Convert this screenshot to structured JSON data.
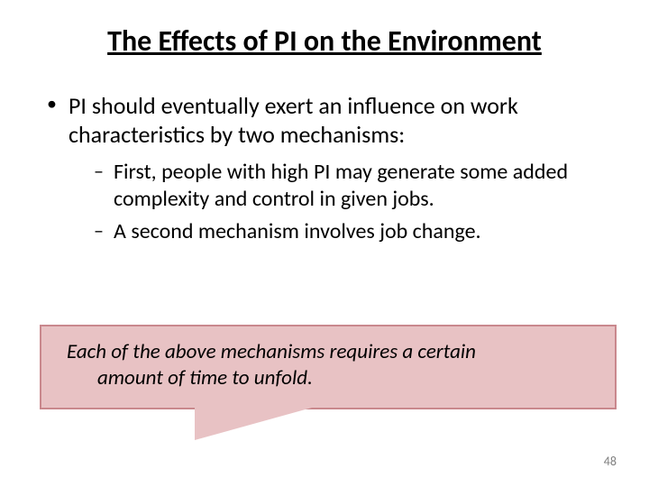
{
  "colors": {
    "callout_fill": "#e8c2c4",
    "callout_border": "#c9888d",
    "text": "#000000",
    "pagenum": "#7f7f7f",
    "background": "#ffffff"
  },
  "title": "The Effects of PI on the Environment",
  "bullets": {
    "l1": "PI should eventually exert an influence on work characteristics by two mechanisms:",
    "l2a": "First, people with high PI may generate some added complexity and control in given jobs.",
    "l2b": "A second mechanism involves job change."
  },
  "callout": {
    "line1": "Each of the above mechanisms requires a certain",
    "line2": "amount of time to unfold."
  },
  "pagenum": "48",
  "fontsizes": {
    "title": 32,
    "level1": 26,
    "level2": 24,
    "callout": 23,
    "pagenum": 14
  }
}
